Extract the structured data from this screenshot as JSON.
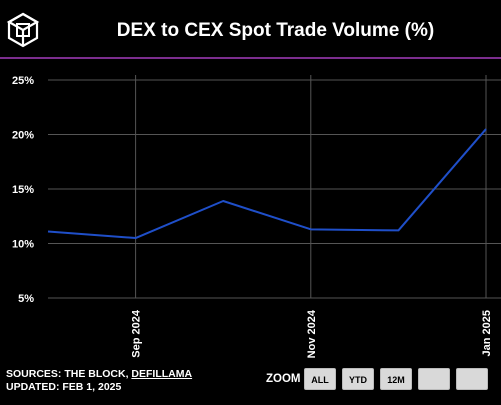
{
  "header": {
    "title": "DEX to CEX Spot Trade Volume (%)",
    "logo_icon": "the-block-cube-logo"
  },
  "colors": {
    "background": "#000000",
    "accent_line": "#7b2d8e",
    "series_line": "#1f4fc9",
    "gridline": "#555555",
    "button_bg": "#d9d9d9"
  },
  "chart_data": {
    "type": "line",
    "title": "DEX to CEX Spot Trade Volume (%)",
    "x": [
      "2024-08",
      "2024-09",
      "2024-10",
      "2024-11",
      "2024-12",
      "2025-01"
    ],
    "x_tick_labels": [
      {
        "x": "2024-09",
        "label": "Sep 2024"
      },
      {
        "x": "2024-11",
        "label": "Nov 2024"
      },
      {
        "x": "2025-01",
        "label": "Jan 2025"
      }
    ],
    "series": [
      {
        "values": [
          11.1,
          10.5,
          13.9,
          11.3,
          11.2,
          20.5
        ]
      }
    ],
    "y_ticks": [
      5,
      10,
      15,
      20,
      25
    ],
    "y_tick_labels": [
      "5%",
      "10%",
      "15%",
      "20%",
      "25%"
    ],
    "ylim": [
      5,
      25
    ],
    "grid": true,
    "legend": "none"
  },
  "footer": {
    "sources_prefix": "SOURCES: THE BLOCK, ",
    "sources_link": "DEFILLAMA",
    "updated": "UPDATED: FEB 1, 2025"
  },
  "zoom": {
    "label": "ZOOM",
    "buttons": [
      "ALL",
      "YTD",
      "12M",
      "",
      ""
    ]
  }
}
